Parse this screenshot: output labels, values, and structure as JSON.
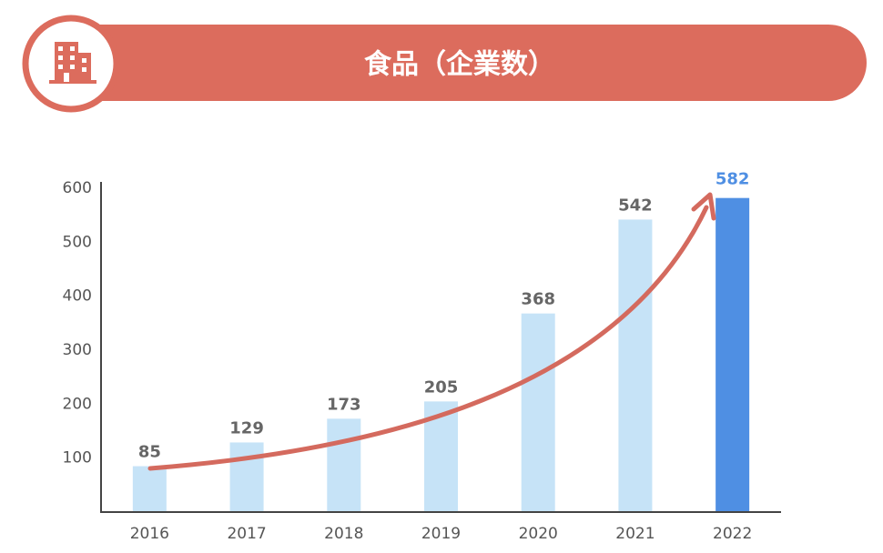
{
  "chart_data": {
    "type": "bar",
    "title": "食品（企業数）",
    "categories": [
      "2016",
      "2017",
      "2018",
      "2019",
      "2020",
      "2021",
      "2022"
    ],
    "values": [
      85,
      129,
      173,
      205,
      368,
      542,
      582
    ],
    "colors": [
      "#c6e3f7",
      "#c6e3f7",
      "#c6e3f7",
      "#c6e3f7",
      "#c6e3f7",
      "#c6e3f7",
      "#4f8fe3"
    ],
    "value_label_colors": [
      "#666666",
      "#666666",
      "#666666",
      "#666666",
      "#666666",
      "#666666",
      "#4f8fe3"
    ],
    "ylim": [
      0,
      600
    ],
    "yticks": [
      100,
      200,
      300,
      400,
      500,
      600
    ]
  }
}
